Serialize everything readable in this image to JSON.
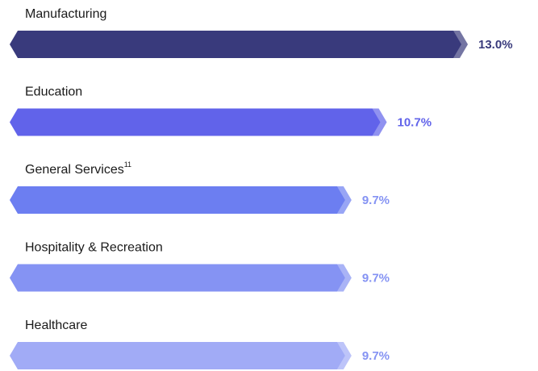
{
  "chart_data": {
    "type": "bar",
    "categories": [
      "Manufacturing",
      "Education",
      "General Services",
      "Hospitality & Recreation",
      "Healthcare"
    ],
    "category_footnotes": [
      null,
      null,
      "11",
      null,
      null
    ],
    "values": [
      13.0,
      10.7,
      9.7,
      9.7,
      9.7
    ],
    "value_labels": [
      "13.0%",
      "10.7%",
      "9.7%",
      "9.7%",
      "9.7%"
    ],
    "colors": [
      "#393a7c",
      "#6163ea",
      "#6c7ef1",
      "#8593f3",
      "#a1abf6"
    ],
    "label_colors": [
      "#393a7c",
      "#6163ea",
      "#8593f3",
      "#8593f3",
      "#8593f3"
    ]
  }
}
